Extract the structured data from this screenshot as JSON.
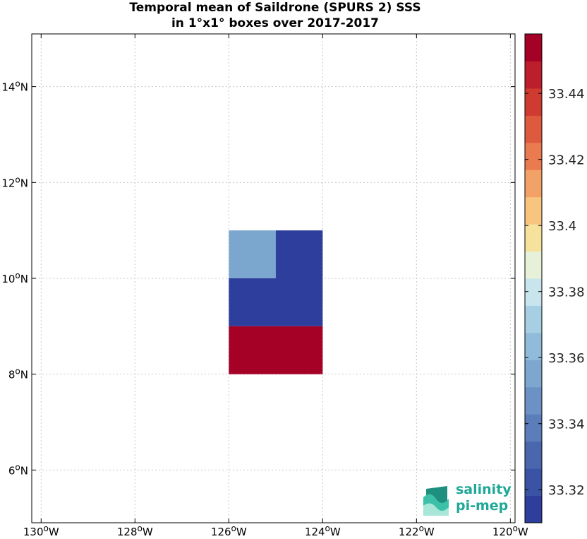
{
  "title": {
    "line1": "Temporal mean of Saildrone (SPURS 2) SSS",
    "line2": "in 1°x1° boxes over 2017-2017"
  },
  "chart_data": {
    "type": "heatmap",
    "x_range": [
      -130.2,
      -119.9
    ],
    "y_range": [
      4.9,
      15.1
    ],
    "x_ticks": [
      {
        "value": -130,
        "label": "130°W"
      },
      {
        "value": -128,
        "label": "128°W"
      },
      {
        "value": -126,
        "label": "126°W"
      },
      {
        "value": -124,
        "label": "124°W"
      },
      {
        "value": -122,
        "label": "122°W"
      },
      {
        "value": -120,
        "label": "120°W"
      }
    ],
    "y_ticks": [
      {
        "value": 6,
        "label": "6°N"
      },
      {
        "value": 8,
        "label": "8°N"
      },
      {
        "value": 10,
        "label": "10°N"
      },
      {
        "value": 12,
        "label": "12°N"
      },
      {
        "value": 14,
        "label": "14°N"
      }
    ],
    "grid": true,
    "cells": [
      {
        "lon": [
          -126,
          -125
        ],
        "lat": [
          10,
          11
        ],
        "color": "#7ba7cf"
      },
      {
        "lon": [
          -125,
          -124
        ],
        "lat": [
          10,
          11
        ],
        "color": "#2e3e9c"
      },
      {
        "lon": [
          -126,
          -124
        ],
        "lat": [
          9,
          10
        ],
        "color": "#2e3e9c"
      },
      {
        "lon": [
          -126,
          -124
        ],
        "lat": [
          8,
          9
        ],
        "color": "#a50026"
      }
    ],
    "colorbar": {
      "range": [
        33.31,
        33.458
      ],
      "ticks": [
        "33.32",
        "33.34",
        "33.36",
        "33.38",
        "33.4",
        "33.42",
        "33.44"
      ],
      "tick_values": [
        33.32,
        33.34,
        33.36,
        33.38,
        33.4,
        33.42,
        33.44
      ],
      "colors": [
        "#2e3e9c",
        "#3a53a4",
        "#4a67ae",
        "#5b7dba",
        "#6c91c5",
        "#7ea7d0",
        "#90bbda",
        "#a7cfe3",
        "#c8e5ee",
        "#e7f0d8",
        "#f6e29c",
        "#f7c57d",
        "#f3a267",
        "#ea7a50",
        "#de5a3f",
        "#cf3a31",
        "#bd1e2b",
        "#a50026"
      ]
    }
  },
  "logo": {
    "line1": "salinity",
    "line2": "pi-mep"
  }
}
